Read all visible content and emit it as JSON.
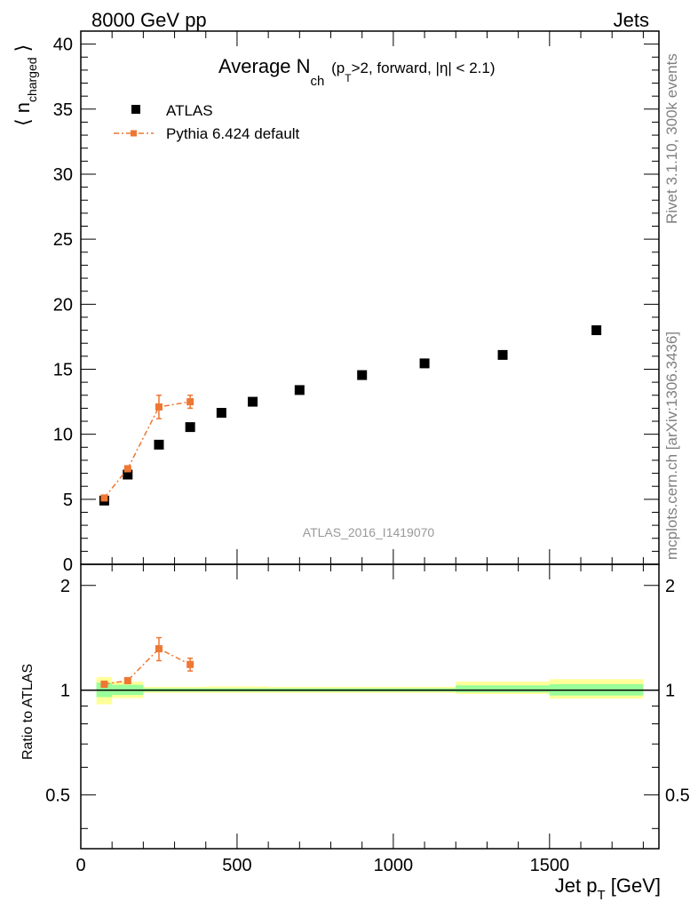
{
  "header": {
    "energy": "8000 GeV pp",
    "process": "Jets"
  },
  "side_text": {
    "rivet": "Rivet 3.1.10,  300k events",
    "mcplots": "mcplots.cern.ch [arXiv:1306.3436]"
  },
  "analysis_id": "ATLAS_2016_I1419070",
  "title": {
    "main": "Average N",
    "sub1": "ch",
    "mid": " (p",
    "sub2": "T",
    "end": ">2, forward, |η| < 2.1)"
  },
  "legend": {
    "data_label": "ATLAS",
    "mc_label": "Pythia 6.424 default"
  },
  "axes": {
    "ylabel_main": "n",
    "ylabel_sub": "charged",
    "ylabel_ratio": "Ratio to ATLAS",
    "xlabel_main": "Jet p",
    "xlabel_sub": "T",
    "xlabel_unit": " [GeV]"
  },
  "colors": {
    "data": "#000000",
    "mc": "#ee7733",
    "band_inner": "#99ff99",
    "band_outer": "#ffff99"
  },
  "chart_data": [
    {
      "type": "scatter",
      "panel": "main",
      "xlim": [
        0,
        1850
      ],
      "ylim": [
        0,
        41
      ],
      "yticks": [
        0,
        5,
        10,
        15,
        20,
        25,
        30,
        35,
        40
      ],
      "series": [
        {
          "name": "ATLAS",
          "x": [
            75,
            150,
            250,
            350,
            450,
            550,
            700,
            900,
            1100,
            1350,
            1650
          ],
          "y": [
            4.9,
            6.9,
            9.2,
            10.55,
            11.65,
            12.5,
            13.4,
            14.55,
            15.45,
            16.1,
            18.0
          ],
          "xerr": [
            25,
            50,
            50,
            50,
            50,
            50,
            100,
            100,
            100,
            150,
            150
          ]
        },
        {
          "name": "Pythia 6.424 default",
          "x": [
            75,
            150,
            250,
            350
          ],
          "y": [
            5.1,
            7.35,
            12.1,
            12.5
          ],
          "yerr": [
            0.15,
            0.2,
            0.9,
            0.5
          ]
        }
      ]
    },
    {
      "type": "scatter",
      "panel": "ratio",
      "xlim": [
        0,
        1850
      ],
      "ylim": [
        0.35,
        2.3
      ],
      "ylog": true,
      "yticks": [
        0.5,
        1,
        2
      ],
      "xticks": [
        0,
        500,
        1000,
        1500
      ],
      "bands": [
        {
          "x0": 50,
          "x1": 100,
          "inner": [
            0.955,
            1.05
          ],
          "outer": [
            0.91,
            1.09
          ]
        },
        {
          "x0": 100,
          "x1": 200,
          "inner": [
            0.968,
            1.036
          ],
          "outer": [
            0.948,
            1.058
          ]
        },
        {
          "x0": 200,
          "x1": 300,
          "inner": [
            0.99,
            1.012
          ],
          "outer": [
            0.982,
            1.022
          ]
        },
        {
          "x0": 300,
          "x1": 400,
          "inner": [
            0.99,
            1.012
          ],
          "outer": [
            0.982,
            1.022
          ]
        },
        {
          "x0": 400,
          "x1": 500,
          "inner": [
            0.99,
            1.012
          ],
          "outer": [
            0.982,
            1.025
          ]
        },
        {
          "x0": 500,
          "x1": 600,
          "inner": [
            0.99,
            1.012
          ],
          "outer": [
            0.982,
            1.025
          ]
        },
        {
          "x0": 600,
          "x1": 800,
          "inner": [
            0.99,
            1.012
          ],
          "outer": [
            0.982,
            1.022
          ]
        },
        {
          "x0": 800,
          "x1": 1000,
          "inner": [
            0.99,
            1.012
          ],
          "outer": [
            0.982,
            1.022
          ]
        },
        {
          "x0": 1000,
          "x1": 1200,
          "inner": [
            0.99,
            1.012
          ],
          "outer": [
            0.982,
            1.022
          ]
        },
        {
          "x0": 1200,
          "x1": 1500,
          "inner": [
            0.985,
            1.032
          ],
          "outer": [
            0.975,
            1.058
          ]
        },
        {
          "x0": 1500,
          "x1": 1800,
          "inner": [
            0.965,
            1.04
          ],
          "outer": [
            0.945,
            1.075
          ]
        }
      ],
      "series": [
        {
          "name": "Pythia 6.424 default",
          "x": [
            75,
            150,
            250,
            350
          ],
          "y": [
            1.04,
            1.065,
            1.315,
            1.185
          ],
          "yerr": [
            0.02,
            0.02,
            0.1,
            0.05
          ]
        }
      ]
    }
  ]
}
